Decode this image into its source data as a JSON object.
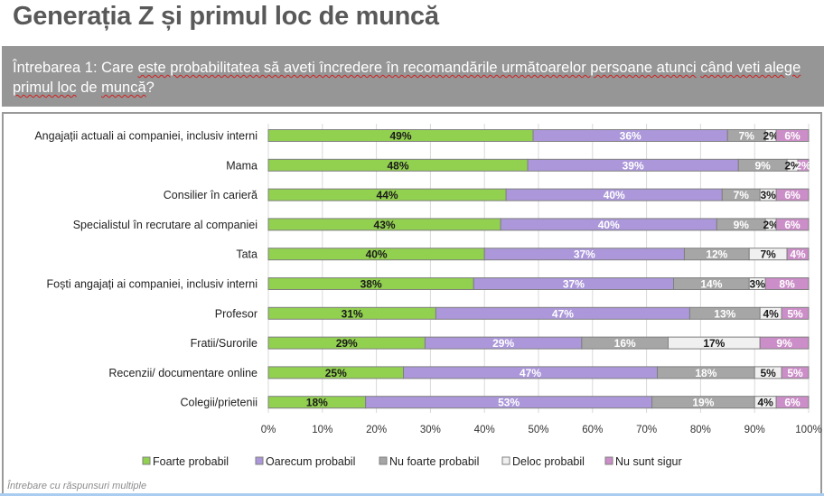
{
  "header": {
    "title": "Generația Z și primul loc de muncă"
  },
  "question": {
    "text_parts": [
      {
        "text": "Întrebarea 1: Care ",
        "flag": false
      },
      {
        "text": "este probabilitatea să aveti încredere în recomandările următoarelor persoane atunci",
        "flag": true
      },
      {
        "text": " ",
        "flag": false
      },
      {
        "text": "când veti alege primul loc",
        "flag": true
      },
      {
        "text": " de ",
        "flag": false
      },
      {
        "text": "muncă",
        "flag": true
      },
      {
        "text": "?",
        "flag": false
      }
    ]
  },
  "footnote": "Întrebare cu răspunsuri multiple",
  "chart_data": {
    "type": "bar",
    "orientation": "horizontal",
    "stacked": "100%",
    "title": "",
    "xlabel": "",
    "ylabel": "",
    "xlim": [
      0,
      100
    ],
    "x_ticks": [
      "0%",
      "10%",
      "20%",
      "30%",
      "40%",
      "50%",
      "60%",
      "70%",
      "80%",
      "90%",
      "100%"
    ],
    "grid": "vertical",
    "legend_position": "bottom",
    "categories": [
      "Angajații actuali ai companiei, inclusiv interni",
      "Mama",
      "Consilier în carieră",
      "Specialistul în recrutare al companiei",
      "Tata",
      "Foști angajați ai companiei, inclusiv interni",
      "Profesor",
      "Fratii/Surorile",
      "Recenzii/ documentare online",
      "Colegii/prietenii"
    ],
    "series": [
      {
        "name": "Foarte probabil",
        "color": "#92d050",
        "label_color": "#1a1a1a",
        "values": [
          49,
          48,
          44,
          43,
          40,
          38,
          31,
          29,
          25,
          18
        ]
      },
      {
        "name": "Oarecum probabil",
        "color": "#ab97da",
        "label_color": "#ffffff",
        "values": [
          36,
          39,
          40,
          40,
          37,
          37,
          47,
          29,
          47,
          53
        ]
      },
      {
        "name": "Nu foarte probabil",
        "color": "#a6a6a6",
        "label_color": "#ffffff",
        "values": [
          7,
          9,
          7,
          9,
          12,
          14,
          13,
          16,
          18,
          19
        ]
      },
      {
        "name": "Deloc probabil",
        "color": "#f0f0f0",
        "label_color": "#1a1a1a",
        "values": [
          2,
          2,
          3,
          2,
          7,
          3,
          4,
          17,
          5,
          4
        ]
      },
      {
        "name": "Nu sunt sigur",
        "color": "#cc8ec8",
        "label_color": "#ffffff",
        "values": [
          6,
          2,
          6,
          6,
          4,
          8,
          5,
          9,
          5,
          6
        ]
      }
    ]
  }
}
